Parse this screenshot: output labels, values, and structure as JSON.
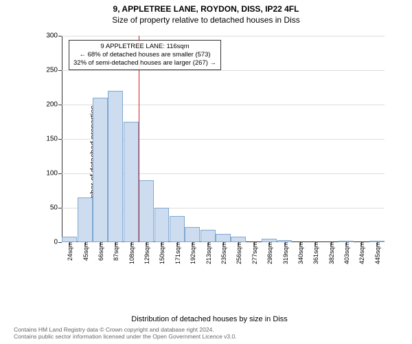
{
  "titles": {
    "main": "9, APPLETREE LANE, ROYDON, DISS, IP22 4FL",
    "sub": "Size of property relative to detached houses in Diss"
  },
  "axes": {
    "y_label": "Number of detached properties",
    "x_label": "Distribution of detached houses by size in Diss",
    "y": {
      "min": 0,
      "max": 300,
      "step": 50,
      "ticks": [
        0,
        50,
        100,
        150,
        200,
        250,
        300
      ]
    },
    "grid_color": "#dddddd"
  },
  "chart": {
    "type": "bar",
    "bar_fill": "#cdddef",
    "bar_stroke": "#7fa7d1",
    "background": "#ffffff",
    "categories": [
      "24sqm",
      "45sqm",
      "66sqm",
      "87sqm",
      "108sqm",
      "129sqm",
      "150sqm",
      "171sqm",
      "192sqm",
      "213sqm",
      "235sqm",
      "256sqm",
      "277sqm",
      "298sqm",
      "319sqm",
      "340sqm",
      "361sqm",
      "382sqm",
      "403sqm",
      "424sqm",
      "445sqm"
    ],
    "values": [
      8,
      65,
      210,
      220,
      175,
      90,
      50,
      38,
      22,
      18,
      12,
      8,
      0,
      5,
      3,
      0,
      0,
      0,
      2,
      0,
      2
    ]
  },
  "marker": {
    "color": "#d11a1a",
    "after_category_index": 4,
    "box": {
      "line1": "9 APPLETREE LANE: 116sqm",
      "line2": "← 68% of detached houses are smaller (573)",
      "line3": "32% of semi-detached houses are larger (267) →"
    }
  },
  "footer": {
    "line1": "Contains HM Land Registry data © Crown copyright and database right 2024.",
    "line2": "Contains public sector information licensed under the Open Government Licence v3.0."
  },
  "style": {
    "title_fontsize": 12,
    "label_fontsize": 11,
    "tick_fontsize": 10,
    "annot_fontsize": 9.5,
    "footer_color": "#666666"
  }
}
